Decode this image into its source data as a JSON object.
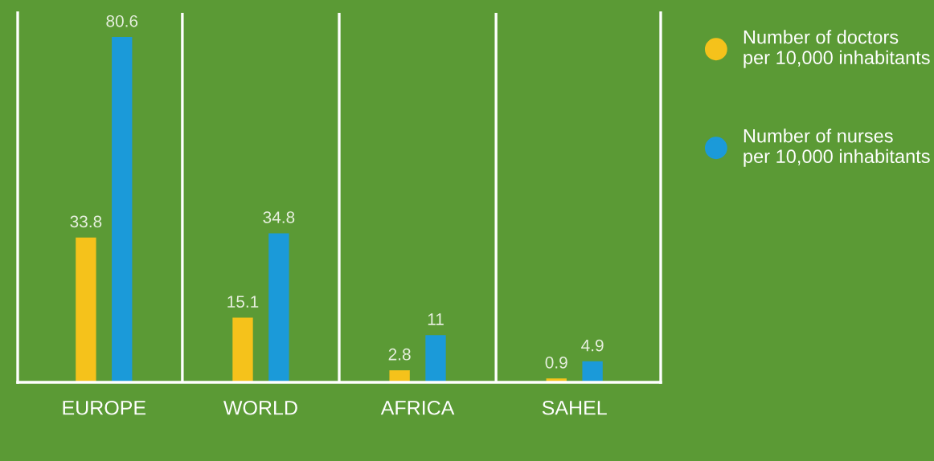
{
  "chart_data": {
    "type": "bar",
    "categories": [
      "EUROPE",
      "WORLD",
      "AFRICA",
      "SAHEL"
    ],
    "series": [
      {
        "name": "Number of doctors\nper 10,000 inhabitants",
        "color": "#f5c21b",
        "values": [
          33.8,
          15.1,
          2.8,
          0.9
        ]
      },
      {
        "name": "Number of nurses\nper 10,000 inhabitants",
        "color": "#1b9ad9",
        "values": [
          80.6,
          34.8,
          11,
          4.9
        ]
      }
    ],
    "data_labels": true,
    "grid": "x",
    "legend": "right",
    "marker": "circle"
  }
}
